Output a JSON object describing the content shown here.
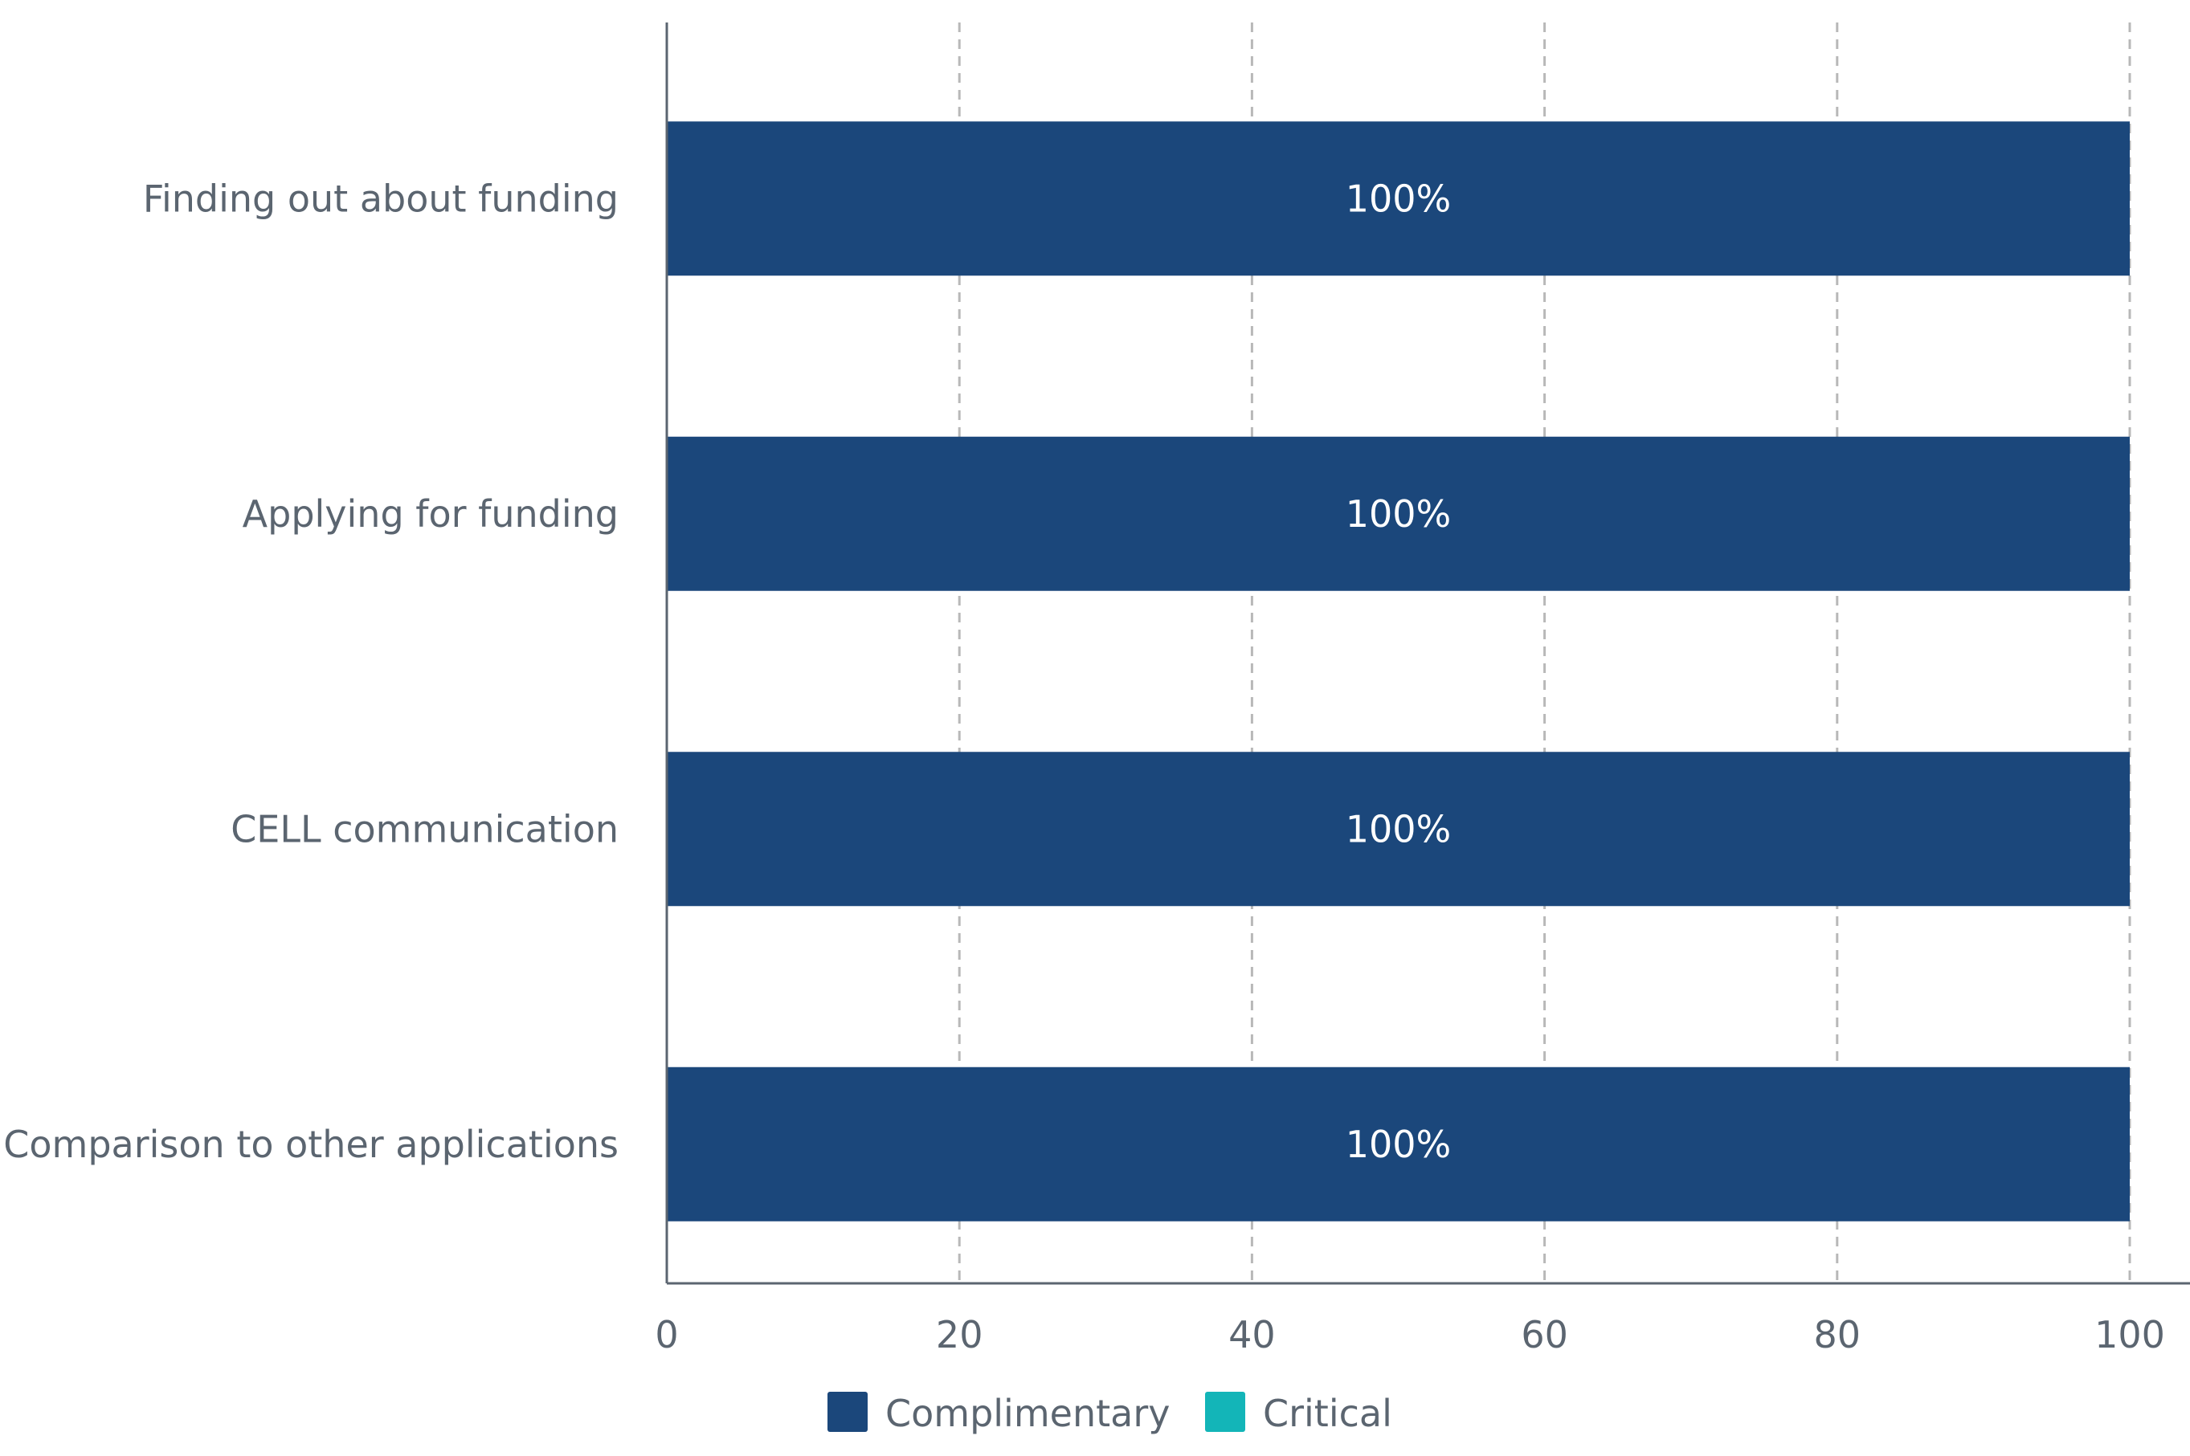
{
  "chart_data": {
    "type": "bar",
    "orientation": "horizontal",
    "stacked": true,
    "categories": [
      "Finding out about funding",
      "Applying for funding",
      "CELL communication",
      "Comparison to other applications"
    ],
    "series": [
      {
        "name": "Complimentary",
        "values": [
          100,
          100,
          100,
          100
        ],
        "color": "#1b477b"
      },
      {
        "name": "Critical",
        "values": [
          0,
          0,
          0,
          0
        ],
        "color": "#13b5b8"
      }
    ],
    "data_labels": [
      "100%",
      "100%",
      "100%",
      "100%"
    ],
    "xticks": [
      "0",
      "20",
      "40",
      "60",
      "80",
      "100"
    ],
    "xlim": [
      0,
      100
    ],
    "grid": "vertical dashed",
    "legend": "bottom-center",
    "title": "",
    "xlabel": "",
    "ylabel": ""
  },
  "colors": {
    "axis": "#5b6570",
    "grid": "#b8b8b8"
  }
}
